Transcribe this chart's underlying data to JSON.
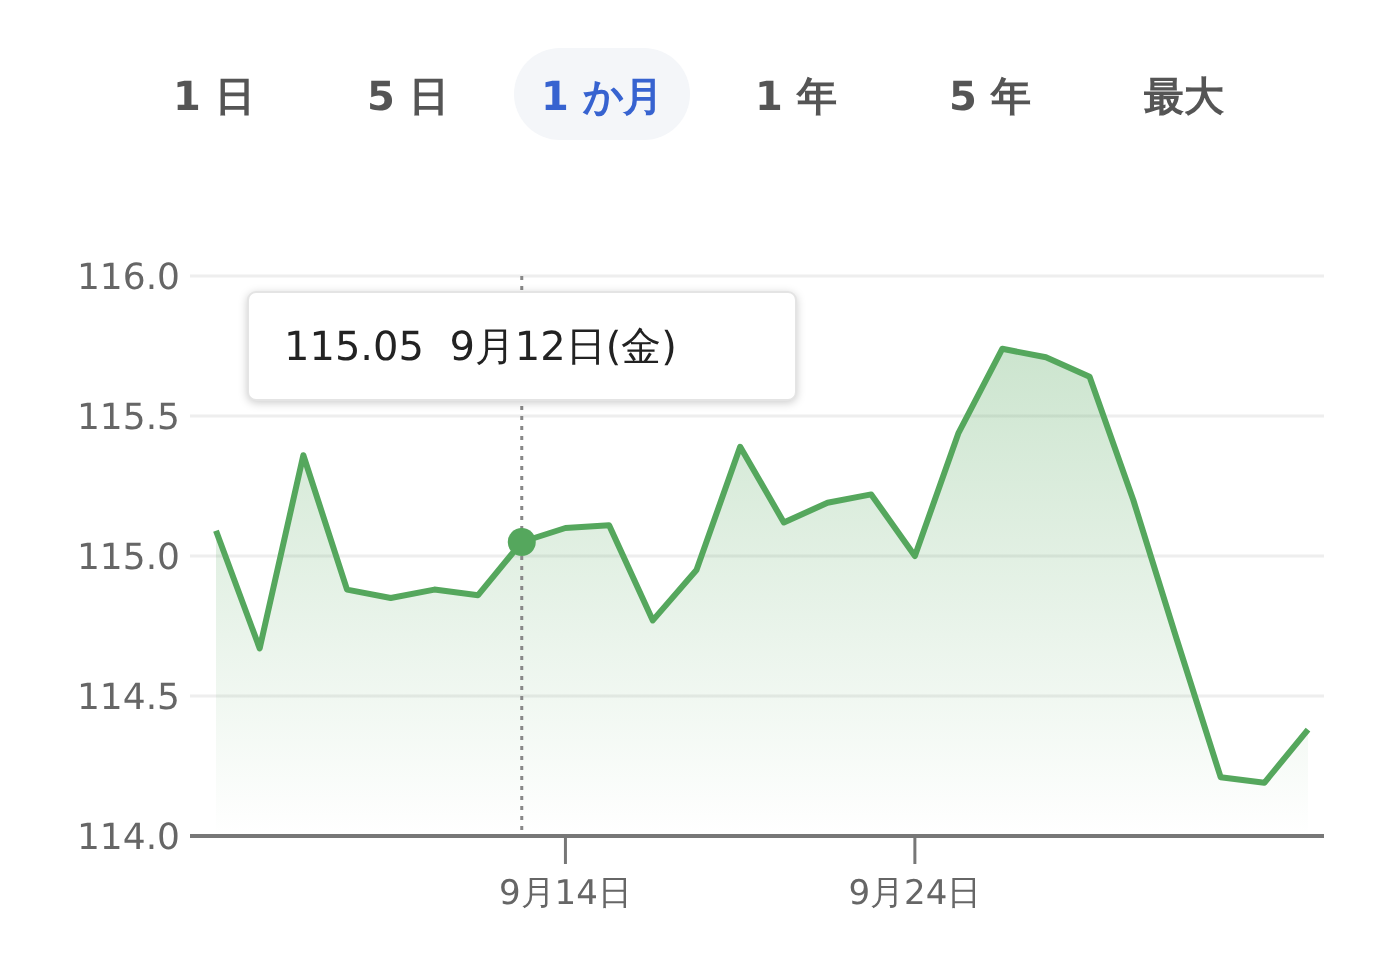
{
  "chart_data": {
    "type": "area",
    "categories": [
      null,
      null,
      null,
      null,
      null,
      null,
      null,
      null,
      "9月14日",
      null,
      null,
      null,
      null,
      null,
      null,
      null,
      "9月24日",
      null,
      null,
      null,
      null,
      null,
      null,
      null,
      null,
      null
    ],
    "series": [
      {
        "color": "#55a75d",
        "values": [
          115.09,
          114.67,
          115.36,
          114.88,
          114.85,
          114.88,
          114.86,
          115.05,
          115.1,
          115.11,
          114.77,
          114.95,
          115.39,
          115.12,
          115.19,
          115.22,
          115.0,
          115.44,
          115.74,
          115.71,
          115.64,
          115.2,
          114.7,
          114.21,
          114.19,
          114.38
        ]
      }
    ],
    "ylim": [
      114.0,
      116.0
    ],
    "yticks": [
      {
        "value": 114,
        "label": "114.0"
      },
      {
        "value": 114.5,
        "label": "114.5"
      },
      {
        "value": 115,
        "label": "115.0"
      },
      {
        "value": 115.5,
        "label": "115.5"
      },
      {
        "value": 116,
        "label": "116.0"
      }
    ],
    "grid": "y",
    "annotations": [
      "1 日",
      "5 日",
      "1 か月",
      "1 年",
      "5 年",
      "最大",
      "115.05  9月12日(金)"
    ]
  }
}
